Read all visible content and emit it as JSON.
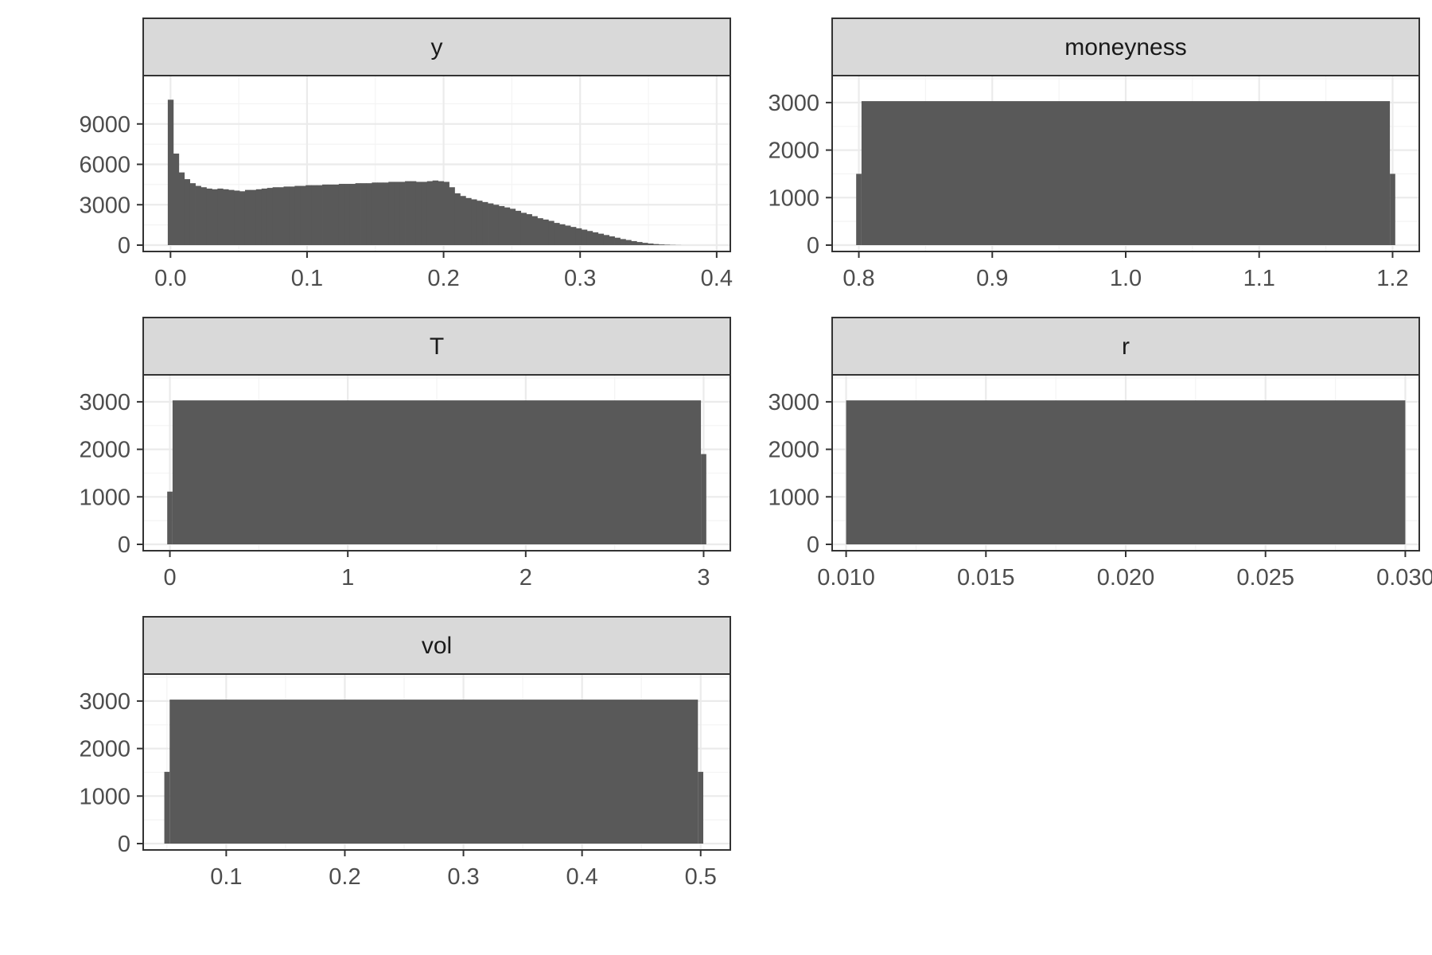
{
  "chart_data": [
    {
      "type": "bar",
      "facet": "y",
      "title": "y",
      "xlim": [
        -0.02,
        0.41
      ],
      "ylim": [
        0,
        12000
      ],
      "x_ticks": [
        0.0,
        0.1,
        0.2,
        0.3,
        0.4
      ],
      "x_tick_labels": [
        "0.0",
        "0.1",
        "0.2",
        "0.3",
        "0.4"
      ],
      "y_ticks": [
        0,
        3000,
        6000,
        9000
      ],
      "y_tick_labels": [
        "0",
        "3000",
        "6000",
        "9000"
      ],
      "grid": true,
      "bin_start": -0.002,
      "bin_width": 0.00404,
      "values": [
        10800,
        6800,
        5400,
        4900,
        4600,
        4400,
        4300,
        4200,
        4150,
        4200,
        4150,
        4100,
        4050,
        4000,
        4100,
        4100,
        4150,
        4200,
        4250,
        4300,
        4300,
        4350,
        4350,
        4400,
        4400,
        4450,
        4450,
        4450,
        4500,
        4500,
        4500,
        4550,
        4550,
        4550,
        4600,
        4600,
        4600,
        4650,
        4650,
        4650,
        4700,
        4700,
        4700,
        4750,
        4750,
        4700,
        4700,
        4750,
        4800,
        4750,
        4700,
        4300,
        3850,
        3650,
        3500,
        3400,
        3300,
        3200,
        3100,
        3000,
        2900,
        2800,
        2700,
        2550,
        2400,
        2300,
        2150,
        2000,
        1900,
        1800,
        1650,
        1550,
        1450,
        1350,
        1250,
        1150,
        1050,
        950,
        850,
        750,
        650,
        550,
        450,
        380,
        300,
        230,
        170,
        120,
        80,
        50,
        30,
        15,
        6
      ]
    },
    {
      "type": "bar",
      "facet": "moneyness",
      "title": "moneyness",
      "xlim": [
        0.78,
        1.22
      ],
      "ylim": [
        0,
        3400
      ],
      "x_ticks": [
        0.8,
        0.9,
        1.0,
        1.1,
        1.2
      ],
      "x_tick_labels": [
        "0.8",
        "0.9",
        "1.0",
        "1.1",
        "1.2"
      ],
      "y_ticks": [
        0,
        1000,
        2000,
        3000
      ],
      "y_tick_labels": [
        "0",
        "1000",
        "2000",
        "3000"
      ],
      "grid": true,
      "bars": [
        {
          "x0": 0.798,
          "x1": 0.802,
          "value": 1500
        },
        {
          "x0": 0.802,
          "x1": 1.198,
          "value": 3030
        },
        {
          "x0": 1.198,
          "x1": 1.202,
          "value": 1500
        }
      ]
    },
    {
      "type": "bar",
      "facet": "T",
      "title": "T",
      "xlim": [
        -0.15,
        3.15
      ],
      "ylim": [
        0,
        3400
      ],
      "x_ticks": [
        0,
        1,
        2,
        3
      ],
      "x_tick_labels": [
        "0",
        "1",
        "2",
        "3"
      ],
      "y_ticks": [
        0,
        1000,
        2000,
        3000
      ],
      "y_tick_labels": [
        "0",
        "1000",
        "2000",
        "3000"
      ],
      "grid": true,
      "bars": [
        {
          "x0": -0.015,
          "x1": 0.015,
          "value": 1110
        },
        {
          "x0": 0.015,
          "x1": 2.985,
          "value": 3030
        },
        {
          "x0": 2.985,
          "x1": 3.015,
          "value": 1900
        }
      ]
    },
    {
      "type": "bar",
      "facet": "r",
      "title": "r",
      "xlim": [
        0.0095,
        0.0305
      ],
      "ylim": [
        0,
        3400
      ],
      "x_ticks": [
        0.01,
        0.015,
        0.02,
        0.025,
        0.03
      ],
      "x_tick_labels": [
        "0.010",
        "0.015",
        "0.020",
        "0.025",
        "0.030"
      ],
      "y_ticks": [
        0,
        1000,
        2000,
        3000
      ],
      "y_tick_labels": [
        "0",
        "1000",
        "2000",
        "3000"
      ],
      "grid": true,
      "bars": [
        {
          "x0": 0.01,
          "x1": 0.03,
          "value": 3030
        }
      ]
    },
    {
      "type": "bar",
      "facet": "vol",
      "title": "vol",
      "xlim": [
        0.03,
        0.525
      ],
      "ylim": [
        0,
        3400
      ],
      "x_ticks": [
        0.1,
        0.2,
        0.3,
        0.4,
        0.5
      ],
      "x_tick_labels": [
        "0.1",
        "0.2",
        "0.3",
        "0.4",
        "0.5"
      ],
      "y_ticks": [
        0,
        1000,
        2000,
        3000
      ],
      "y_tick_labels": [
        "0",
        "1000",
        "2000",
        "3000"
      ],
      "grid": true,
      "bars": [
        {
          "x0": 0.0478,
          "x1": 0.0523,
          "value": 1510
        },
        {
          "x0": 0.0523,
          "x1": 0.4977,
          "value": 3030
        },
        {
          "x0": 0.4977,
          "x1": 0.5022,
          "value": 1510
        }
      ]
    }
  ],
  "colors": {
    "bar_fill": "#595959",
    "strip_fill": "#d9d9d9",
    "frame": "#333333",
    "grid_major": "#ebebeb",
    "grid_minor": "#f4f4f4",
    "strip_text": "#1a1a1a",
    "tick_text": "#4d4d4d",
    "background": "#ffffff"
  }
}
